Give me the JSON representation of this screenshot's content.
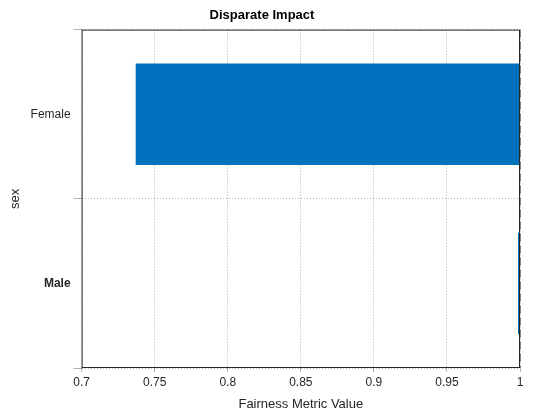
{
  "chart_data": {
    "type": "bar",
    "orientation": "horizontal",
    "title": "Disparate Impact",
    "x_label": "Fairness Metric Value",
    "y_label": "sex",
    "categories": [
      "Female",
      "Male"
    ],
    "values": [
      0.737,
      1
    ],
    "baseline": 1,
    "color": "#0072bd",
    "xlim": [
      0.7,
      1
    ],
    "xticks": [
      0.7,
      0.75,
      0.8,
      0.85,
      0.9,
      0.95,
      1
    ],
    "grid": true
  }
}
